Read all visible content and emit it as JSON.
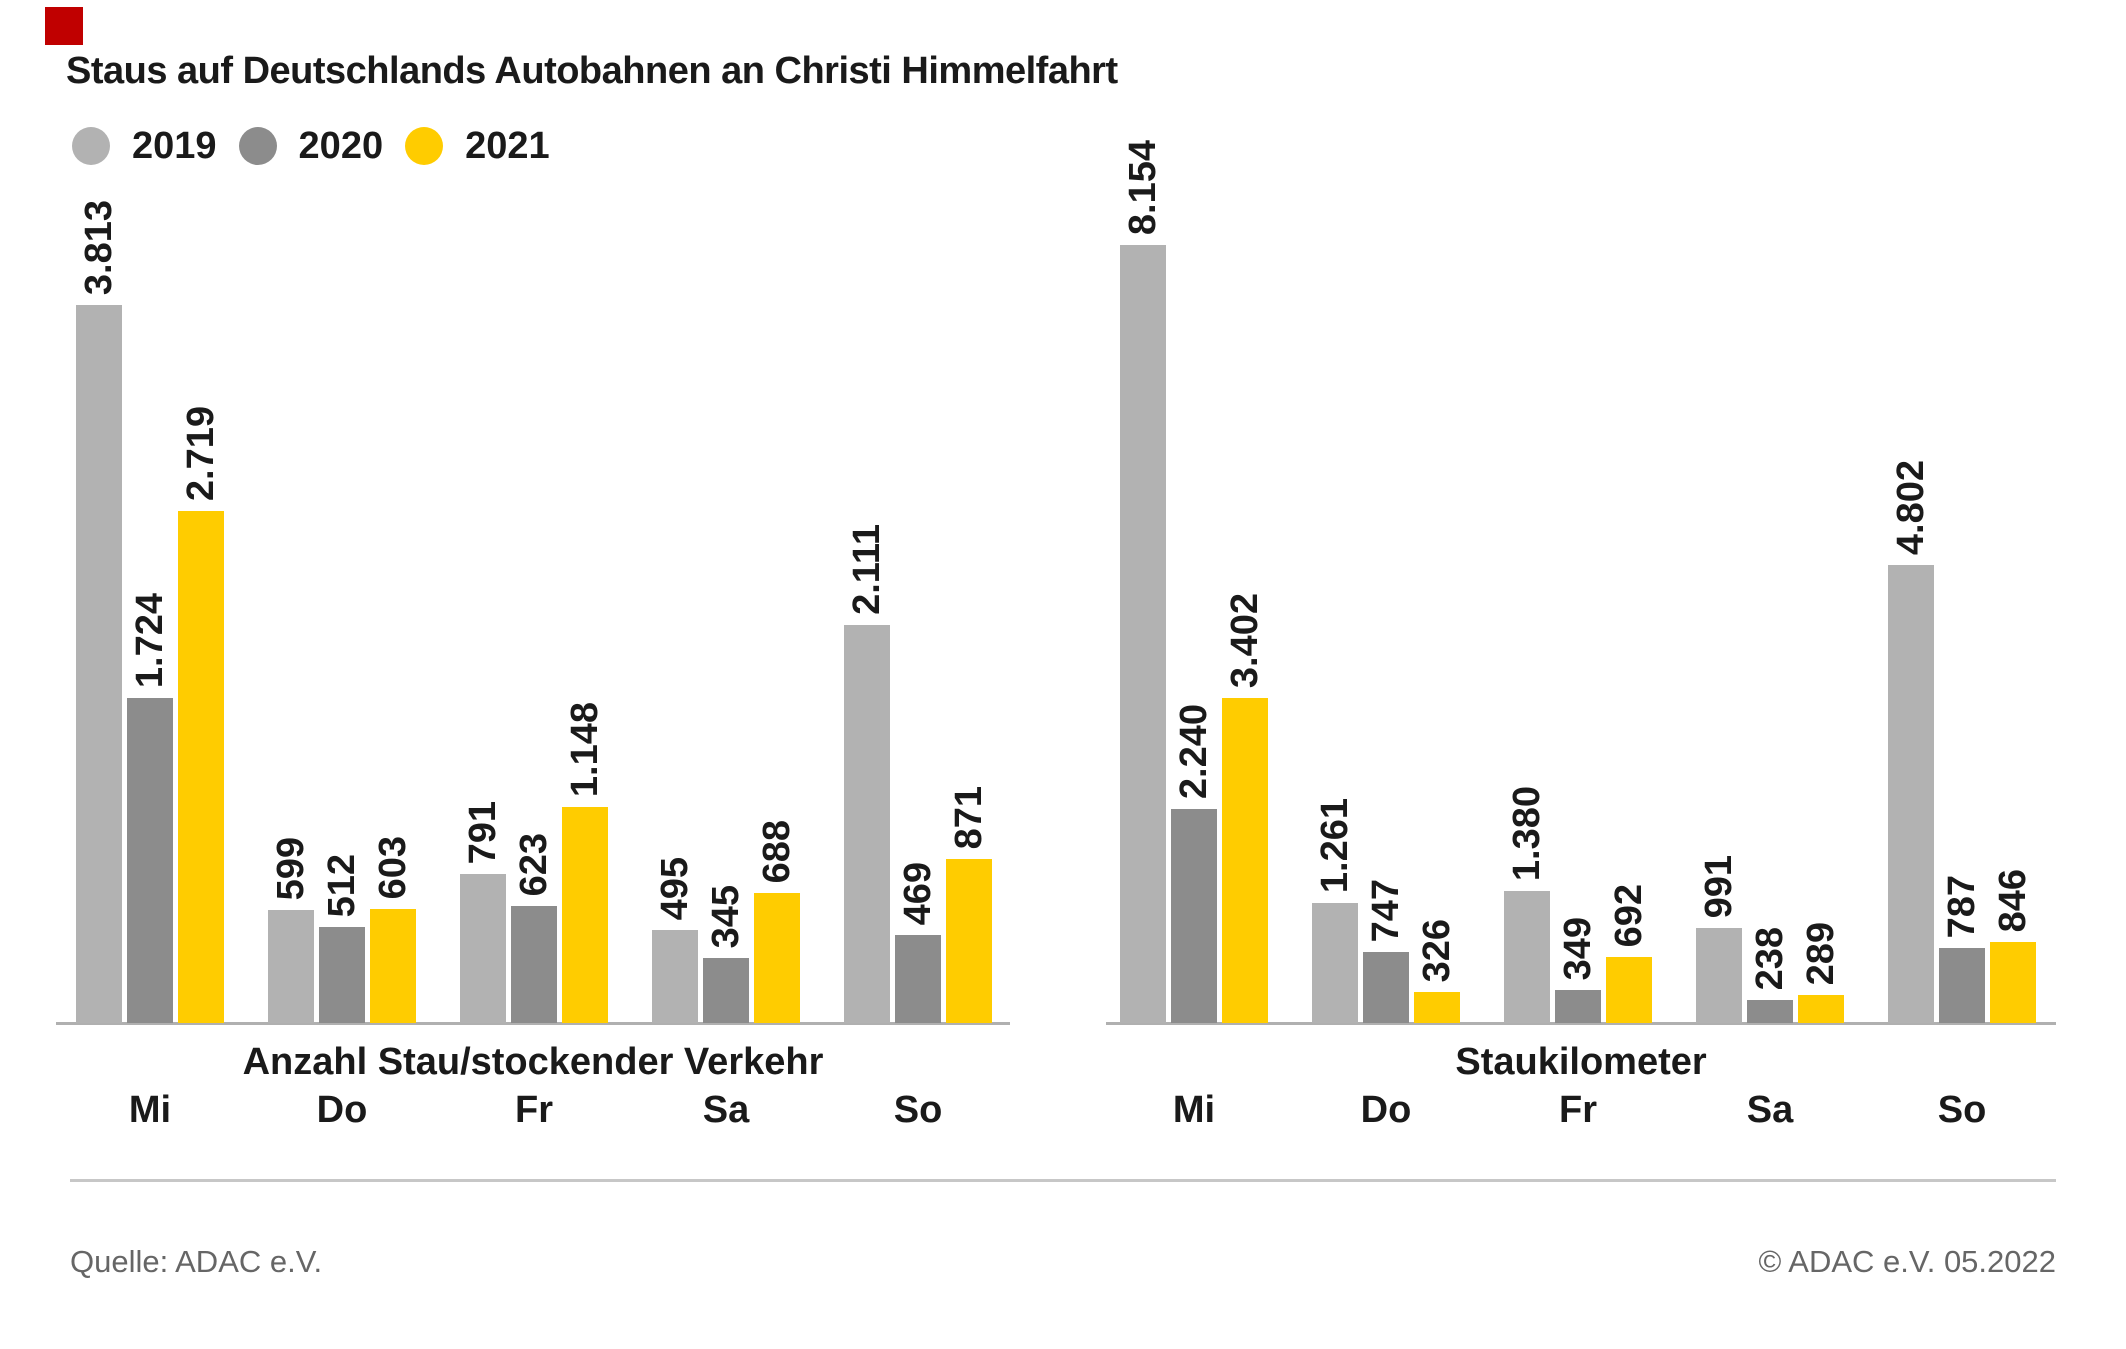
{
  "page": {
    "title": "Staus auf Deutschlands Autobahnen an Christi Himmelfahrt",
    "marker_color": "#c00000",
    "source_left": "Quelle: ADAC e.V.",
    "source_right": "© ADAC e.V. 05.2022"
  },
  "legend": [
    {
      "label": "2019",
      "color": "#b2b2b2"
    },
    {
      "label": "2020",
      "color": "#8c8c8c"
    },
    {
      "label": "2021",
      "color": "#ffcc00"
    }
  ],
  "chart_data": [
    {
      "type": "bar",
      "title": "Anzahl Stau/stockender Verkehr",
      "categories": [
        "Mi",
        "Do",
        "Fr",
        "Sa",
        "So"
      ],
      "series": [
        {
          "name": "2019",
          "color": "#b2b2b2",
          "values": [
            3813,
            599,
            791,
            495,
            2111
          ],
          "labels": [
            "3.813",
            "599",
            "791",
            "495",
            "2.111"
          ]
        },
        {
          "name": "2020",
          "color": "#8c8c8c",
          "values": [
            1724,
            512,
            623,
            345,
            469
          ],
          "labels": [
            "1.724",
            "512",
            "623",
            "345",
            "469"
          ]
        },
        {
          "name": "2021",
          "color": "#ffcc00",
          "values": [
            2719,
            603,
            1148,
            688,
            871
          ],
          "labels": [
            "2.719",
            "603",
            "1.148",
            "688",
            "871"
          ]
        }
      ],
      "ylim": [
        0,
        4100
      ],
      "grid": false,
      "legend_position": "top-left",
      "value_label_rotation": 90
    },
    {
      "type": "bar",
      "title": "Staukilometer",
      "categories": [
        "Mi",
        "Do",
        "Fr",
        "Sa",
        "So"
      ],
      "series": [
        {
          "name": "2019",
          "color": "#b2b2b2",
          "values": [
            8154,
            1261,
            1380,
            991,
            4802
          ],
          "labels": [
            "8.154",
            "1.261",
            "1.380",
            "991",
            "4.802"
          ]
        },
        {
          "name": "2020",
          "color": "#8c8c8c",
          "values": [
            2240,
            747,
            349,
            238,
            787
          ],
          "labels": [
            "2.240",
            "747",
            "349",
            "238",
            "787"
          ]
        },
        {
          "name": "2021",
          "color": "#ffcc00",
          "values": [
            3402,
            326,
            692,
            289,
            846
          ],
          "labels": [
            "3.402",
            "326",
            "692",
            "289",
            "846"
          ]
        }
      ],
      "ylim": [
        0,
        8600
      ],
      "grid": false,
      "legend_position": "top-left",
      "value_label_rotation": 90
    }
  ]
}
